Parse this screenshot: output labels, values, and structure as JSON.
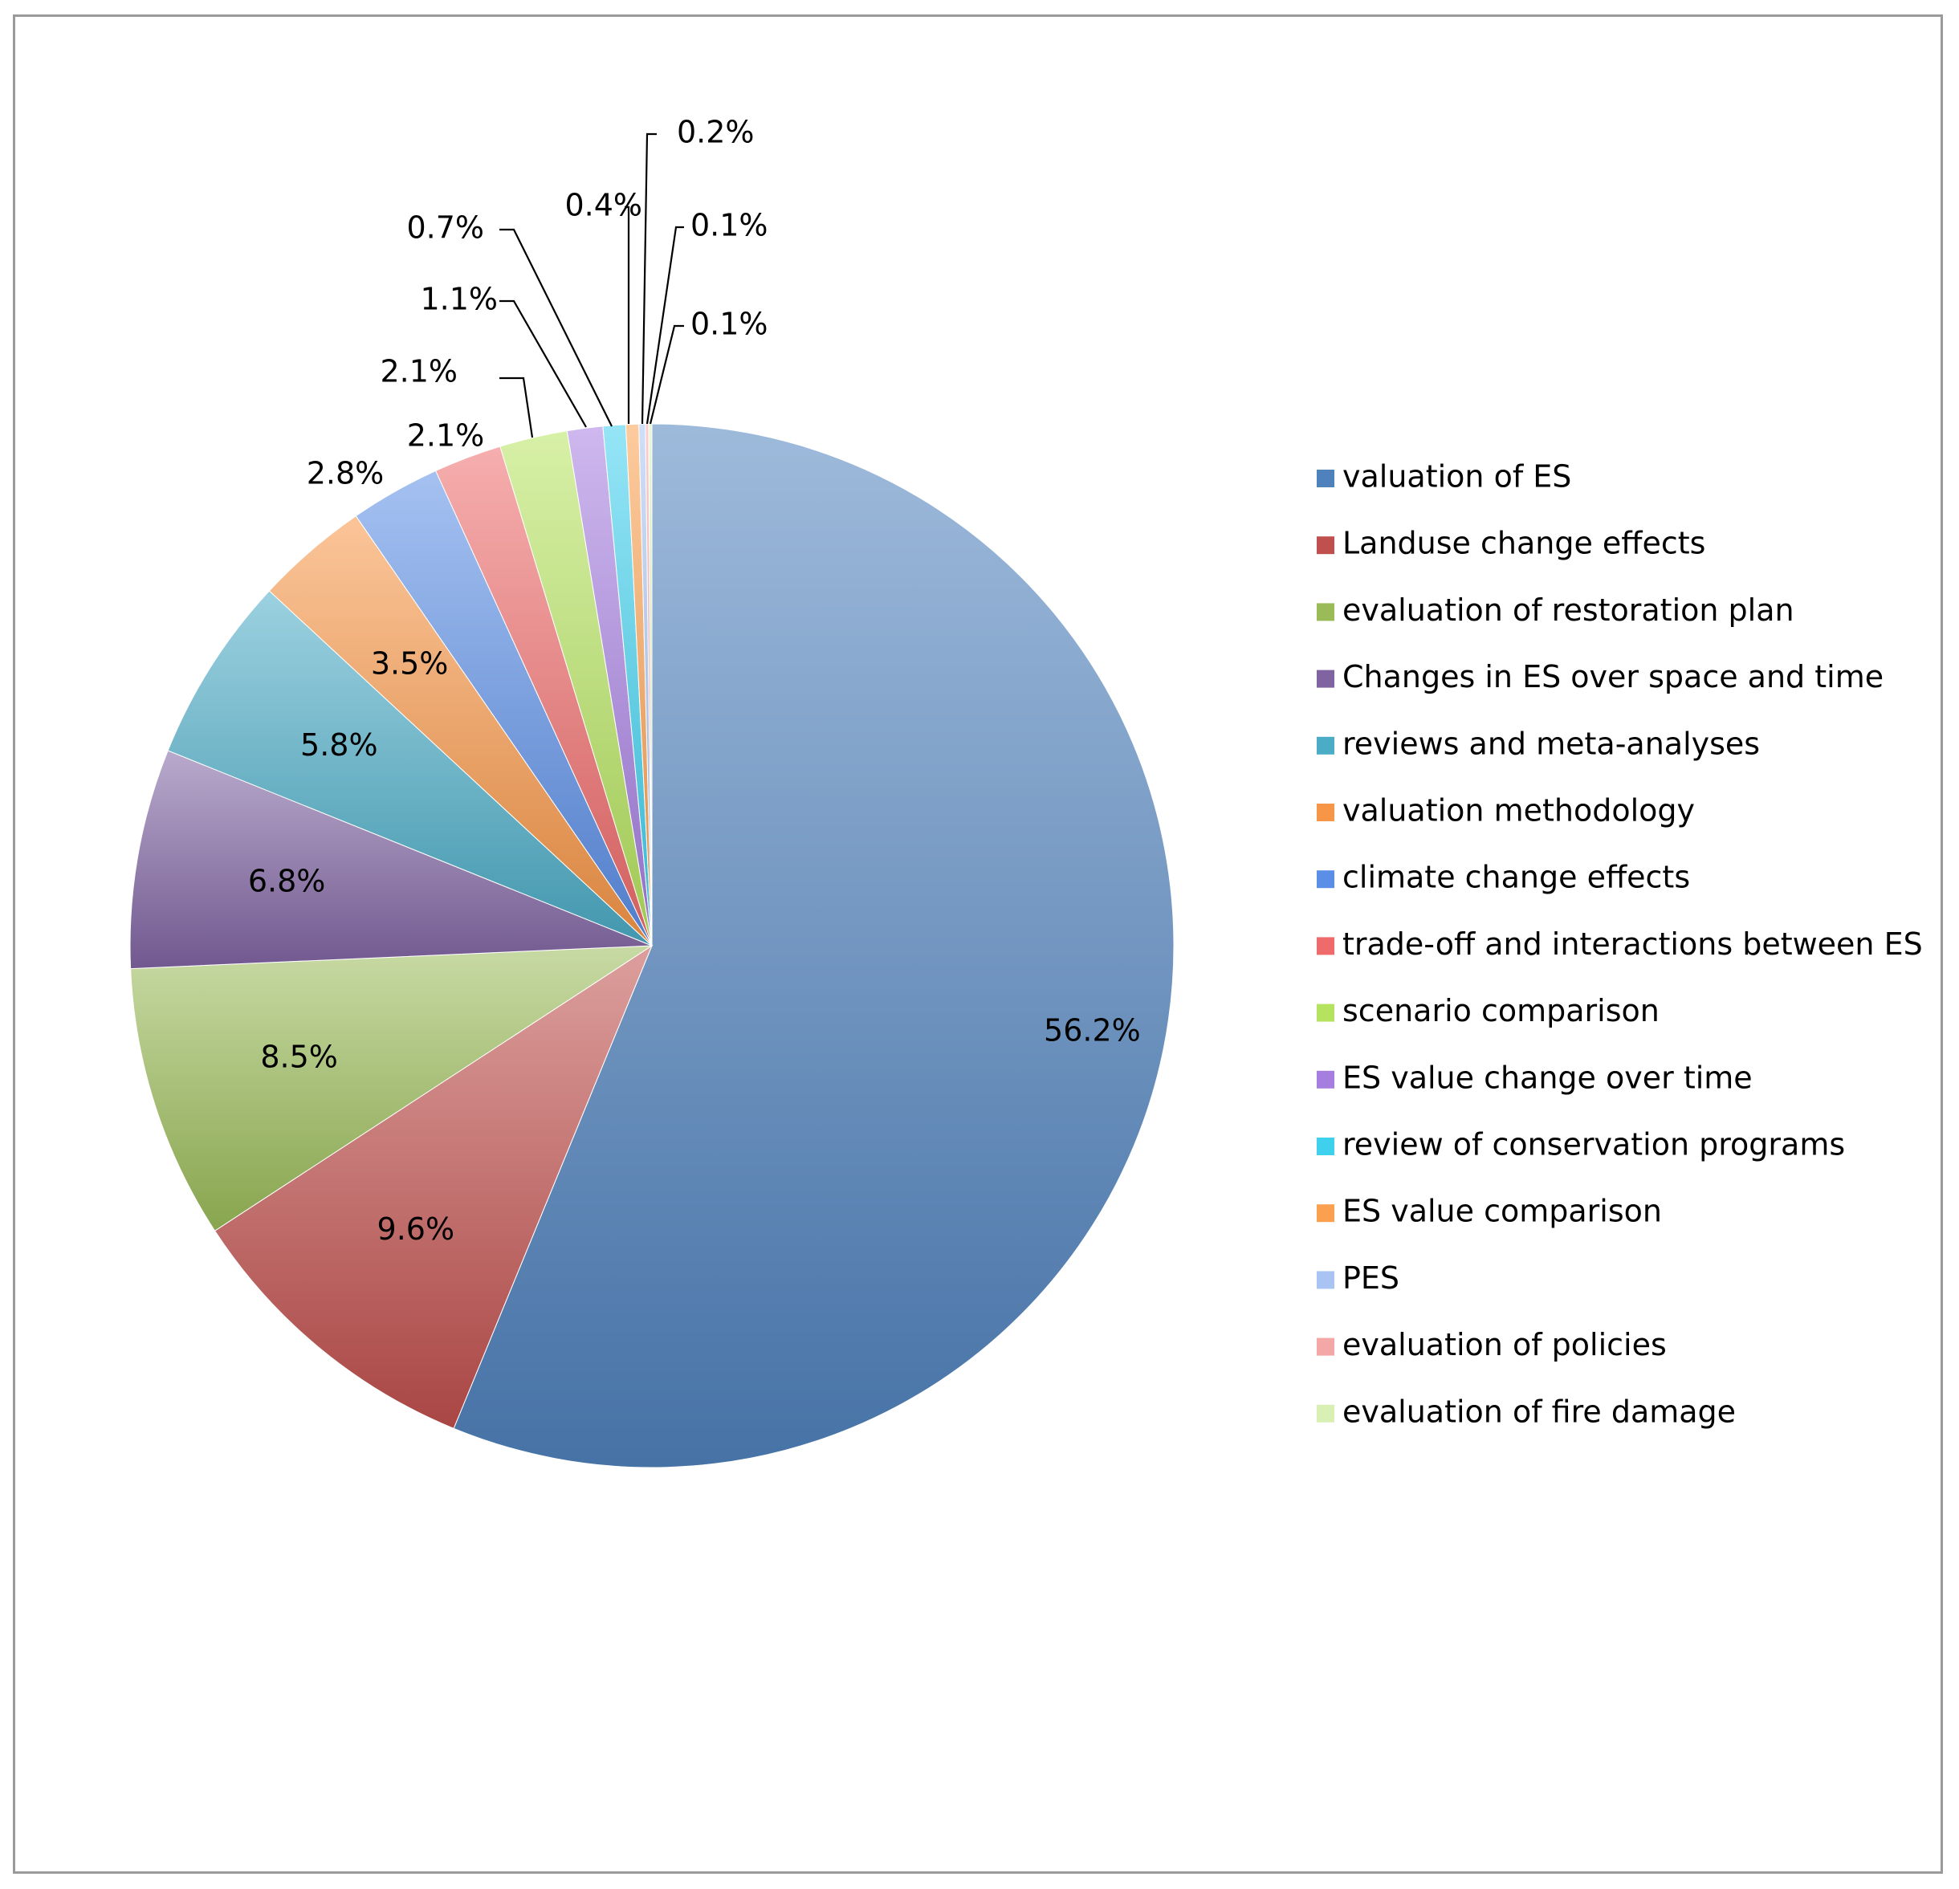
{
  "chart_data": {
    "type": "pie",
    "title": "",
    "legend_position": "right",
    "slices": [
      {
        "label": "valuation of ES",
        "value": 56.2,
        "display": "56.2%",
        "color": "#4f81bd"
      },
      {
        "label": "Landuse change effects",
        "value": 9.6,
        "display": "9.6%",
        "color": "#c0504d"
      },
      {
        "label": "evaluation of restoration plan",
        "value": 8.5,
        "display": "8.5%",
        "color": "#9bbb59"
      },
      {
        "label": "Changes in ES over space and time",
        "value": 6.8,
        "display": "6.8%",
        "color": "#8064a2"
      },
      {
        "label": "reviews and meta-analyses",
        "value": 5.8,
        "display": "5.8%",
        "color": "#4bacc6"
      },
      {
        "label": "valuation methodology",
        "value": 3.5,
        "display": "3.5%",
        "color": "#f79646"
      },
      {
        "label": "climate change effects",
        "value": 2.8,
        "display": "2.8%",
        "color": "#5b8ee6"
      },
      {
        "label": "trade-off and interactions between ES",
        "value": 2.1,
        "display": "2.1%",
        "color": "#ef6b6b"
      },
      {
        "label": "scenario comparison",
        "value": 2.1,
        "display": "2.1%",
        "color": "#b6e35f"
      },
      {
        "label": "ES value change over time",
        "value": 1.1,
        "display": "1.1%",
        "color": "#a57ee0"
      },
      {
        "label": "review of conservation programs",
        "value": 0.7,
        "display": "0.7%",
        "color": "#3fd0ee"
      },
      {
        "label": "ES value comparison",
        "value": 0.4,
        "display": "0.4%",
        "color": "#fba04e"
      },
      {
        "label": "PES",
        "value": 0.2,
        "display": "0.2%",
        "color": "#a9c4f3"
      },
      {
        "label": "evaluation of policies",
        "value": 0.1,
        "display": "0.1%",
        "color": "#f4a7a7"
      },
      {
        "label": "evaluation of fire damage",
        "value": 0.1,
        "display": "0.1%",
        "color": "#d8f0b4"
      }
    ]
  }
}
